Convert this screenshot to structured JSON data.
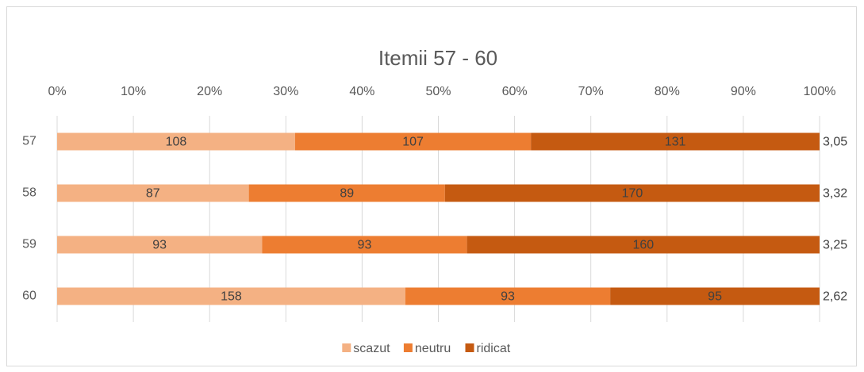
{
  "chart_data": {
    "type": "bar",
    "orientation": "horizontal",
    "stacked": "percent",
    "title": "Itemii 57 - 60",
    "categories": [
      "57",
      "58",
      "59",
      "60"
    ],
    "series": [
      {
        "name": "scazut",
        "color": "#f4b183",
        "values": [
          108,
          87,
          93,
          158
        ]
      },
      {
        "name": "neutru",
        "color": "#ed7d31",
        "values": [
          107,
          89,
          93,
          93
        ]
      },
      {
        "name": "ridicat",
        "color": "#c55a11",
        "values": [
          131,
          170,
          160,
          95
        ]
      }
    ],
    "row_end_labels": {
      "values": [
        3.05,
        3.32,
        3.25,
        2.62
      ],
      "value_labels": [
        "3,05",
        "3,32",
        "3,25",
        "2,62"
      ]
    },
    "xlim": [
      0,
      100
    ],
    "xticks": [
      {
        "value": 0,
        "label": "0%"
      },
      {
        "value": 10,
        "label": "10%"
      },
      {
        "value": 20,
        "label": "20%"
      },
      {
        "value": 30,
        "label": "30%"
      },
      {
        "value": 40,
        "label": "40%"
      },
      {
        "value": 50,
        "label": "50%"
      },
      {
        "value": 60,
        "label": "60%"
      },
      {
        "value": 70,
        "label": "70%"
      },
      {
        "value": 80,
        "label": "80%"
      },
      {
        "value": 90,
        "label": "90%"
      },
      {
        "value": 100,
        "label": "100%"
      }
    ],
    "grid": true,
    "legend": "bottom"
  }
}
